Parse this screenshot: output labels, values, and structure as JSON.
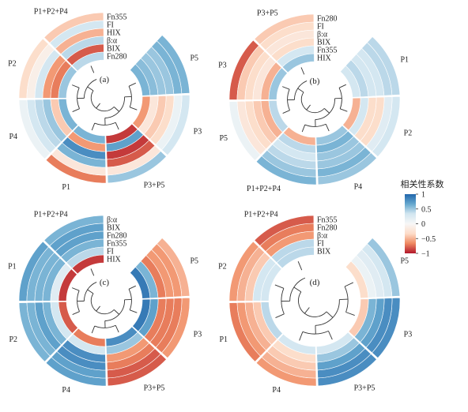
{
  "chart_data": {
    "type": "heatmap",
    "legend": {
      "title": "相关性系数",
      "ticks": [
        "1",
        "0.5",
        "0",
        "−0.5",
        "−1"
      ],
      "tick_values": [
        1,
        0.5,
        0,
        -0.5,
        -1
      ],
      "range": [
        -1,
        1
      ],
      "colors": [
        "#b2182b",
        "#ef8a62",
        "#fddbc7",
        "#f7f7f7",
        "#d1e5f0",
        "#67a9cf",
        "#2166ac"
      ],
      "placement": "right"
    },
    "panels": [
      {
        "id": "a",
        "label": "(a)",
        "ring_labels": [
          "Fn355",
          "FI",
          "HIX",
          "β:α",
          "BIX",
          "Fn280"
        ],
        "groups": [
          {
            "label": "P5",
            "values": [
              0.6,
              0.6,
              0.5,
              0.5,
              0.55,
              0.6
            ]
          },
          {
            "label": "P3",
            "values": [
              0.3,
              0.1,
              -0.3,
              -0.4,
              -0.2,
              -0.6
            ]
          },
          {
            "label": "P3+P5",
            "values": [
              0.5,
              -0.2,
              -0.8,
              -0.9,
              0.7,
              -0.9
            ]
          },
          {
            "label": "P1",
            "values": [
              -0.7,
              -0.2,
              0.6,
              0.8,
              -0.6,
              0.6
            ]
          },
          {
            "label": "P4",
            "values": [
              0.1,
              0.3,
              0.4,
              0.5,
              -0.4,
              0.6
            ]
          },
          {
            "label": "P2",
            "values": [
              -0.3,
              -0.1,
              0.3,
              -0.6,
              -0.7,
              0.5
            ]
          },
          {
            "label": "P1+P2+P4",
            "values": [
              -0.4,
              0.3,
              -0.5,
              0.4,
              -0.8,
              0.4
            ]
          }
        ]
      },
      {
        "id": "b",
        "label": "(b)",
        "ring_labels": [
          "Fn280",
          "FI",
          "β:α",
          "BIX",
          "Fn355",
          "HIX"
        ],
        "groups": [
          {
            "label": "P1",
            "values": [
              0.4,
              0.4,
              0.3,
              0.3,
              0.4,
              0.3
            ]
          },
          {
            "label": "P2",
            "values": [
              0.3,
              0.2,
              -0.3,
              -0.3,
              0.3,
              -0.5
            ]
          },
          {
            "label": "P4",
            "values": [
              0.5,
              0.6,
              0.5,
              0.5,
              0.6,
              0.5
            ]
          },
          {
            "label": "P1+P2+P4",
            "values": [
              0.6,
              0.5,
              0.4,
              0.3,
              0.4,
              -0.5
            ]
          },
          {
            "label": "P5",
            "values": [
              0.1,
              -0.2,
              -0.3,
              -0.4,
              -0.5,
              0.4
            ]
          },
          {
            "label": "P3",
            "values": [
              -0.8,
              -0.4,
              -0.3,
              -0.2,
              -0.5,
              0.5
            ]
          },
          {
            "label": "P3+P5",
            "values": [
              -0.4,
              -0.3,
              -0.2,
              -0.3,
              0.3,
              0.5
            ]
          }
        ]
      },
      {
        "id": "c",
        "label": "(c)",
        "ring_labels": [
          "β:α",
          "BIX",
          "Fn280",
          "Fn355",
          "FI",
          "HIX"
        ],
        "groups": [
          {
            "label": "P5",
            "values": [
              -0.5,
              -0.6,
              -0.6,
              -0.7,
              0.6,
              0.9
            ]
          },
          {
            "label": "P3",
            "values": [
              -0.6,
              -0.7,
              -0.7,
              -0.7,
              0.7,
              0.9
            ]
          },
          {
            "label": "P3+P5",
            "values": [
              -0.8,
              -0.8,
              -0.7,
              -0.6,
              0.5,
              0.8
            ]
          },
          {
            "label": "P4",
            "values": [
              0.7,
              0.7,
              0.8,
              0.8,
              0.3,
              -0.7
            ]
          },
          {
            "label": "P2",
            "values": [
              0.6,
              0.6,
              0.7,
              0.6,
              0.3,
              -0.8
            ]
          },
          {
            "label": "P1",
            "values": [
              0.7,
              0.6,
              0.6,
              0.6,
              0.2,
              -0.9
            ]
          },
          {
            "label": "P1+P2+P4",
            "values": [
              0.6,
              0.7,
              0.7,
              0.6,
              0.4,
              -0.9
            ]
          }
        ]
      },
      {
        "id": "d",
        "label": "(d)",
        "ring_labels": [
          "Fn355",
          "Fn280",
          "β:α",
          "FI",
          "BIX"
        ],
        "groups": [
          {
            "label": "P5",
            "values": [
              0.5,
              0.3,
              0.2,
              0.1,
              -0.3
            ]
          },
          {
            "label": "P3",
            "values": [
              0.8,
              0.8,
              0.7,
              0.6,
              -0.4
            ]
          },
          {
            "label": "P3+P5",
            "values": [
              0.8,
              0.8,
              0.7,
              0.5,
              0.3
            ]
          },
          {
            "label": "P4",
            "values": [
              -0.6,
              -0.5,
              -0.4,
              -0.3,
              0.3
            ]
          },
          {
            "label": "P1",
            "values": [
              -0.7,
              -0.6,
              -0.5,
              -0.4,
              0.4
            ]
          },
          {
            "label": "P2",
            "values": [
              -0.6,
              -0.5,
              -0.4,
              0.3,
              0.3
            ]
          },
          {
            "label": "P1+P2+P4",
            "values": [
              -0.8,
              -0.7,
              -0.6,
              0.4,
              0.4
            ]
          }
        ]
      }
    ]
  }
}
